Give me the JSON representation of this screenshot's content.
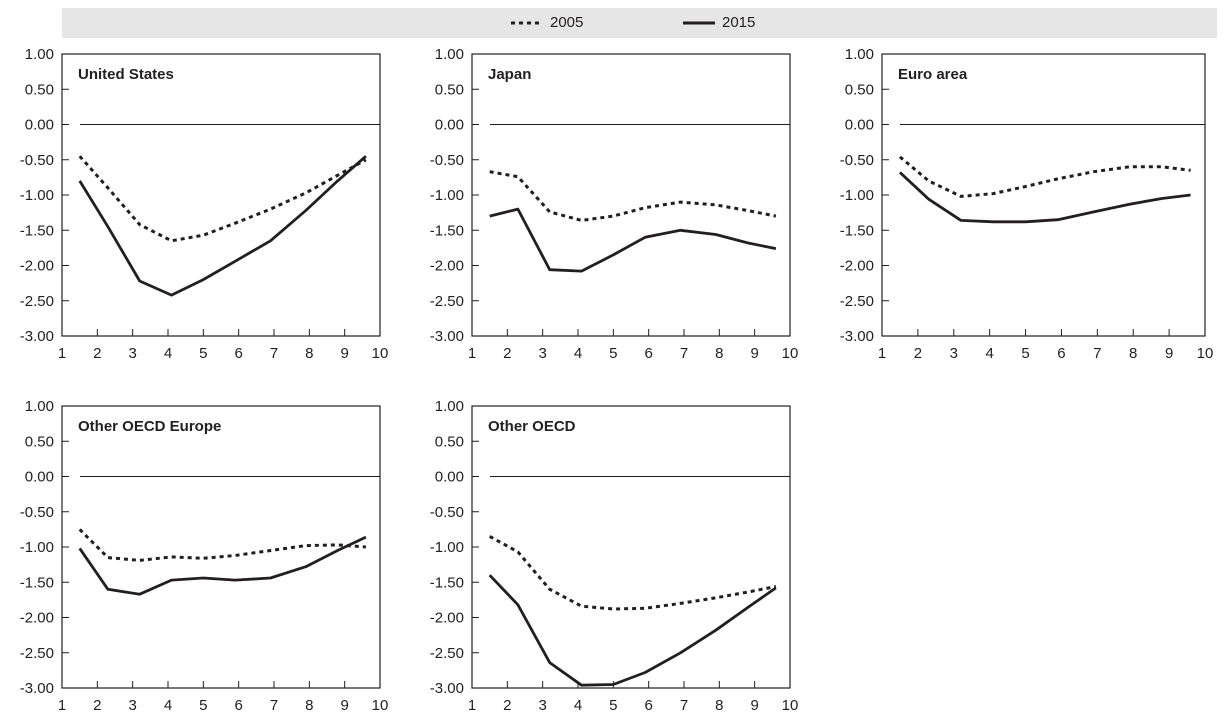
{
  "legend": {
    "items": [
      {
        "label": "2005",
        "style": "dotted"
      },
      {
        "label": "2015",
        "style": "solid"
      }
    ],
    "background": "#e6e6e6"
  },
  "colors": {
    "line": "#231f20",
    "zero_line": "#231f20",
    "frame": "#231f20"
  },
  "chart_data": [
    {
      "type": "line",
      "title": "United States",
      "x": [
        1.5,
        2.3,
        3.2,
        4.1,
        5.0,
        5.9,
        6.9,
        7.9,
        8.8,
        9.6
      ],
      "xlim": [
        1,
        10
      ],
      "xticks": [
        1,
        2,
        3,
        4,
        5,
        6,
        7,
        8,
        9,
        10
      ],
      "ylim": [
        -3.0,
        1.0
      ],
      "yticks": [
        "1.00",
        "0.50",
        "0.00",
        "-0.50",
        "-1.00",
        "-1.50",
        "-2.00",
        "-2.50",
        "-3.00"
      ],
      "series": [
        {
          "name": "2005",
          "style": "dotted",
          "values": [
            -0.45,
            -0.9,
            -1.42,
            -1.65,
            -1.57,
            -1.4,
            -1.2,
            -0.97,
            -0.72,
            -0.5
          ]
        },
        {
          "name": "2015",
          "style": "solid",
          "values": [
            -0.8,
            -1.45,
            -2.22,
            -2.42,
            -2.2,
            -1.94,
            -1.65,
            -1.22,
            -0.8,
            -0.45
          ]
        }
      ]
    },
    {
      "type": "line",
      "title": "Japan",
      "x": [
        1.5,
        2.3,
        3.2,
        4.1,
        5.0,
        5.9,
        6.9,
        7.9,
        8.8,
        9.6
      ],
      "xlim": [
        1,
        10
      ],
      "xticks": [
        1,
        2,
        3,
        4,
        5,
        6,
        7,
        8,
        9,
        10
      ],
      "ylim": [
        -3.0,
        1.0
      ],
      "yticks": [
        "1.00",
        "0.50",
        "0.00",
        "-0.50",
        "-1.00",
        "-1.50",
        "-2.00",
        "-2.50",
        "-3.00"
      ],
      "series": [
        {
          "name": "2005",
          "style": "dotted",
          "values": [
            -0.67,
            -0.74,
            -1.24,
            -1.36,
            -1.3,
            -1.18,
            -1.1,
            -1.14,
            -1.22,
            -1.3
          ]
        },
        {
          "name": "2015",
          "style": "solid",
          "values": [
            -1.3,
            -1.2,
            -2.06,
            -2.08,
            -1.85,
            -1.6,
            -1.5,
            -1.56,
            -1.68,
            -1.76
          ]
        }
      ]
    },
    {
      "type": "line",
      "title": "Euro area",
      "x": [
        1.5,
        2.3,
        3.2,
        4.1,
        5.0,
        5.9,
        6.9,
        7.9,
        8.8,
        9.6
      ],
      "xlim": [
        1,
        10
      ],
      "xticks": [
        1,
        2,
        3,
        4,
        5,
        6,
        7,
        8,
        9,
        10
      ],
      "ylim": [
        -3.0,
        1.0
      ],
      "yticks": [
        "1.00",
        "0.50",
        "0.00",
        "-0.50",
        "-1.00",
        "-1.50",
        "-2.00",
        "-2.50",
        "-3.00"
      ],
      "series": [
        {
          "name": "2005",
          "style": "dotted",
          "values": [
            -0.46,
            -0.8,
            -1.02,
            -0.98,
            -0.88,
            -0.77,
            -0.67,
            -0.6,
            -0.6,
            -0.65
          ]
        },
        {
          "name": "2015",
          "style": "solid",
          "values": [
            -0.68,
            -1.06,
            -1.36,
            -1.38,
            -1.38,
            -1.35,
            -1.24,
            -1.13,
            -1.05,
            -1.0
          ]
        }
      ]
    },
    {
      "type": "line",
      "title": "Other OECD Europe",
      "x": [
        1.5,
        2.3,
        3.2,
        4.1,
        5.0,
        5.9,
        6.9,
        7.9,
        8.8,
        9.6
      ],
      "xlim": [
        1,
        10
      ],
      "xticks": [
        1,
        2,
        3,
        4,
        5,
        6,
        7,
        8,
        9,
        10
      ],
      "ylim": [
        -3.0,
        1.0
      ],
      "yticks": [
        "1.00",
        "0.50",
        "0.00",
        "-0.50",
        "-1.00",
        "-1.50",
        "-2.00",
        "-2.50",
        "-3.00"
      ],
      "series": [
        {
          "name": "2005",
          "style": "dotted",
          "values": [
            -0.75,
            -1.15,
            -1.19,
            -1.14,
            -1.16,
            -1.12,
            -1.05,
            -0.98,
            -0.97,
            -1.0
          ]
        },
        {
          "name": "2015",
          "style": "solid",
          "values": [
            -1.02,
            -1.6,
            -1.67,
            -1.47,
            -1.44,
            -1.47,
            -1.44,
            -1.28,
            -1.05,
            -0.86
          ]
        }
      ]
    },
    {
      "type": "line",
      "title": "Other OECD",
      "x": [
        1.5,
        2.3,
        3.2,
        4.1,
        5.0,
        5.9,
        6.9,
        7.9,
        8.8,
        9.6
      ],
      "xlim": [
        1,
        10
      ],
      "xticks": [
        1,
        2,
        3,
        4,
        5,
        6,
        7,
        8,
        9,
        10
      ],
      "ylim": [
        -3.0,
        1.0
      ],
      "yticks": [
        "1.00",
        "0.50",
        "0.00",
        "-0.50",
        "-1.00",
        "-1.50",
        "-2.00",
        "-2.50",
        "-3.00"
      ],
      "series": [
        {
          "name": "2005",
          "style": "dotted",
          "values": [
            -0.85,
            -1.07,
            -1.6,
            -1.84,
            -1.88,
            -1.87,
            -1.8,
            -1.72,
            -1.64,
            -1.56
          ]
        },
        {
          "name": "2015",
          "style": "solid",
          "values": [
            -1.4,
            -1.82,
            -2.64,
            -2.96,
            -2.95,
            -2.78,
            -2.5,
            -2.18,
            -1.86,
            -1.58
          ]
        }
      ]
    }
  ]
}
